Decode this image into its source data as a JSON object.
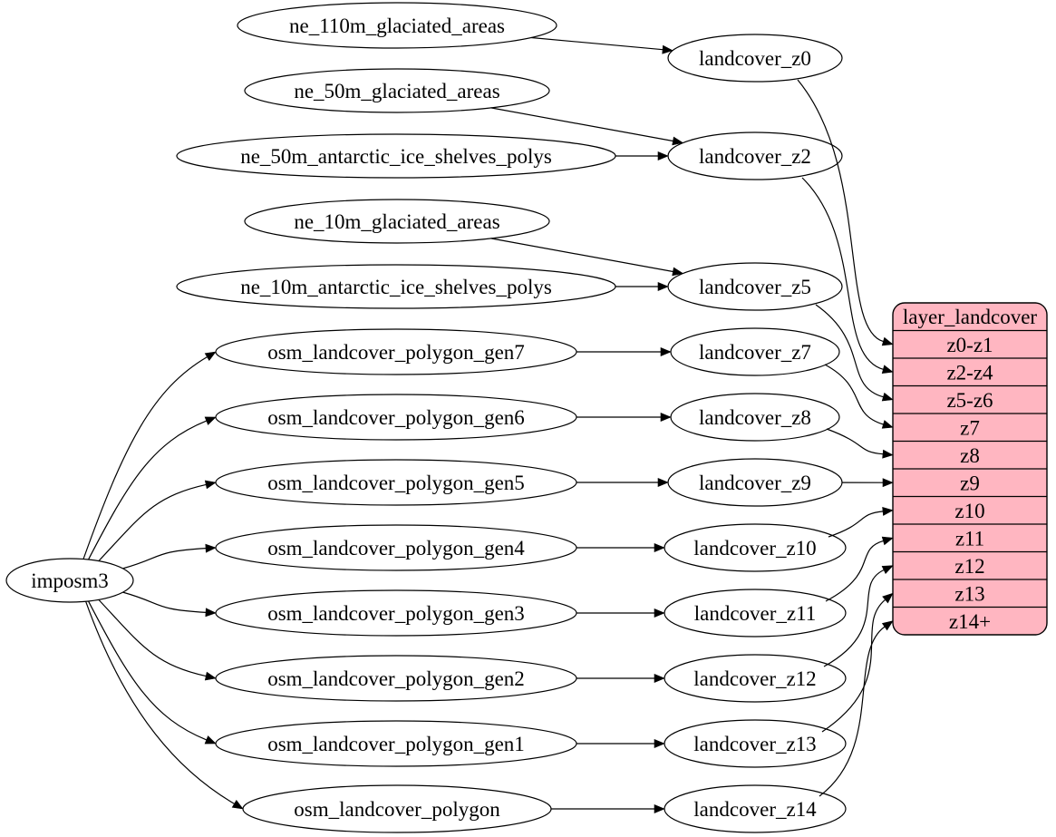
{
  "diagram": {
    "type": "dependency-graph",
    "colors": {
      "background": "#ffffff",
      "node_fill": "#ffffff",
      "stroke": "#000000",
      "record_fill": "#ffb6c1"
    },
    "nodes": [
      {
        "id": "imposm3",
        "label": "imposm3"
      },
      {
        "id": "ne_110m_glaciated_areas",
        "label": "ne_110m_glaciated_areas"
      },
      {
        "id": "ne_50m_glaciated_areas",
        "label": "ne_50m_glaciated_areas"
      },
      {
        "id": "ne_50m_antarctic_ice_shelves_polys",
        "label": "ne_50m_antarctic_ice_shelves_polys"
      },
      {
        "id": "ne_10m_glaciated_areas",
        "label": "ne_10m_glaciated_areas"
      },
      {
        "id": "ne_10m_antarctic_ice_shelves_polys",
        "label": "ne_10m_antarctic_ice_shelves_polys"
      },
      {
        "id": "osm_landcover_polygon_gen7",
        "label": "osm_landcover_polygon_gen7"
      },
      {
        "id": "osm_landcover_polygon_gen6",
        "label": "osm_landcover_polygon_gen6"
      },
      {
        "id": "osm_landcover_polygon_gen5",
        "label": "osm_landcover_polygon_gen5"
      },
      {
        "id": "osm_landcover_polygon_gen4",
        "label": "osm_landcover_polygon_gen4"
      },
      {
        "id": "osm_landcover_polygon_gen3",
        "label": "osm_landcover_polygon_gen3"
      },
      {
        "id": "osm_landcover_polygon_gen2",
        "label": "osm_landcover_polygon_gen2"
      },
      {
        "id": "osm_landcover_polygon_gen1",
        "label": "osm_landcover_polygon_gen1"
      },
      {
        "id": "osm_landcover_polygon",
        "label": "osm_landcover_polygon"
      },
      {
        "id": "landcover_z0",
        "label": "landcover_z0"
      },
      {
        "id": "landcover_z2",
        "label": "landcover_z2"
      },
      {
        "id": "landcover_z5",
        "label": "landcover_z5"
      },
      {
        "id": "landcover_z7",
        "label": "landcover_z7"
      },
      {
        "id": "landcover_z8",
        "label": "landcover_z8"
      },
      {
        "id": "landcover_z9",
        "label": "landcover_z9"
      },
      {
        "id": "landcover_z10",
        "label": "landcover_z10"
      },
      {
        "id": "landcover_z11",
        "label": "landcover_z11"
      },
      {
        "id": "landcover_z12",
        "label": "landcover_z12"
      },
      {
        "id": "landcover_z13",
        "label": "landcover_z13"
      },
      {
        "id": "landcover_z14",
        "label": "landcover_z14"
      }
    ],
    "record": {
      "id": "layer_landcover",
      "title": "layer_landcover",
      "rows": [
        "z0-z1",
        "z2-z4",
        "z5-z6",
        "z7",
        "z8",
        "z9",
        "z10",
        "z11",
        "z12",
        "z13",
        "z14+"
      ]
    },
    "edges": [
      {
        "from": "ne_110m_glaciated_areas",
        "to": "landcover_z0"
      },
      {
        "from": "ne_50m_glaciated_areas",
        "to": "landcover_z2"
      },
      {
        "from": "ne_50m_antarctic_ice_shelves_polys",
        "to": "landcover_z2"
      },
      {
        "from": "ne_10m_glaciated_areas",
        "to": "landcover_z5"
      },
      {
        "from": "ne_10m_antarctic_ice_shelves_polys",
        "to": "landcover_z5"
      },
      {
        "from": "imposm3",
        "to": "osm_landcover_polygon_gen7"
      },
      {
        "from": "imposm3",
        "to": "osm_landcover_polygon_gen6"
      },
      {
        "from": "imposm3",
        "to": "osm_landcover_polygon_gen5"
      },
      {
        "from": "imposm3",
        "to": "osm_landcover_polygon_gen4"
      },
      {
        "from": "imposm3",
        "to": "osm_landcover_polygon_gen3"
      },
      {
        "from": "imposm3",
        "to": "osm_landcover_polygon_gen2"
      },
      {
        "from": "imposm3",
        "to": "osm_landcover_polygon_gen1"
      },
      {
        "from": "imposm3",
        "to": "osm_landcover_polygon"
      },
      {
        "from": "osm_landcover_polygon_gen7",
        "to": "landcover_z7"
      },
      {
        "from": "osm_landcover_polygon_gen6",
        "to": "landcover_z8"
      },
      {
        "from": "osm_landcover_polygon_gen5",
        "to": "landcover_z9"
      },
      {
        "from": "osm_landcover_polygon_gen4",
        "to": "landcover_z10"
      },
      {
        "from": "osm_landcover_polygon_gen3",
        "to": "landcover_z11"
      },
      {
        "from": "osm_landcover_polygon_gen2",
        "to": "landcover_z12"
      },
      {
        "from": "osm_landcover_polygon_gen1",
        "to": "landcover_z13"
      },
      {
        "from": "osm_landcover_polygon",
        "to": "landcover_z14"
      },
      {
        "from": "landcover_z0",
        "to": "layer_landcover",
        "row": "z0-z1"
      },
      {
        "from": "landcover_z2",
        "to": "layer_landcover",
        "row": "z2-z4"
      },
      {
        "from": "landcover_z5",
        "to": "layer_landcover",
        "row": "z5-z6"
      },
      {
        "from": "landcover_z7",
        "to": "layer_landcover",
        "row": "z7"
      },
      {
        "from": "landcover_z8",
        "to": "layer_landcover",
        "row": "z8"
      },
      {
        "from": "landcover_z9",
        "to": "layer_landcover",
        "row": "z9"
      },
      {
        "from": "landcover_z10",
        "to": "layer_landcover",
        "row": "z10"
      },
      {
        "from": "landcover_z11",
        "to": "layer_landcover",
        "row": "z11"
      },
      {
        "from": "landcover_z12",
        "to": "layer_landcover",
        "row": "z12"
      },
      {
        "from": "landcover_z13",
        "to": "layer_landcover",
        "row": "z13"
      },
      {
        "from": "landcover_z14",
        "to": "layer_landcover",
        "row": "z14+"
      }
    ]
  }
}
